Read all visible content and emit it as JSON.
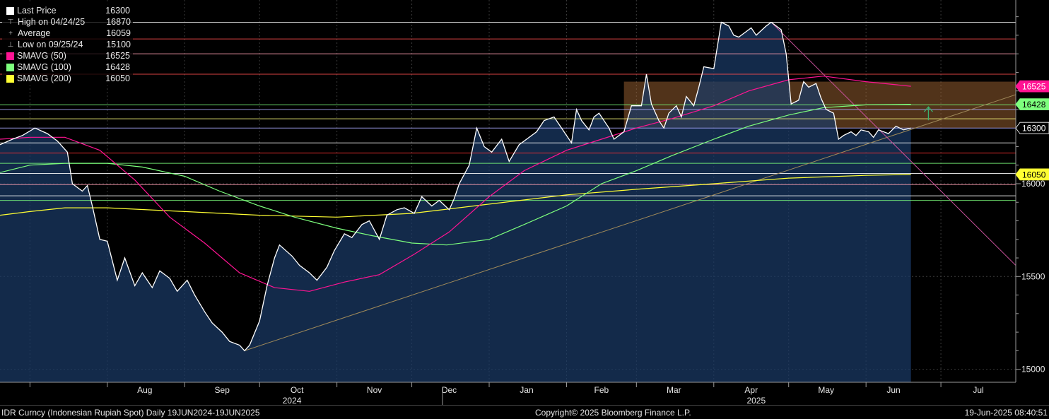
{
  "chart_data": {
    "type": "line",
    "security": "IDR Curncy (Indonesian Rupiah Spot)",
    "frequency": "Daily",
    "range_label": "19JUN2024-19JUN2025",
    "ylim": [
      14930,
      16990
    ],
    "y_ticks": [
      15000,
      15500,
      16000
    ],
    "x_month_labels": [
      "Aug",
      "Sep",
      "Oct",
      "Nov",
      "Dec",
      "Jan",
      "Feb",
      "Mar",
      "Apr",
      "May",
      "Jun",
      "Jul"
    ],
    "x_year_labels": [
      "2024",
      "2025"
    ],
    "legend": [
      {
        "name": "Last Price",
        "value": "16300",
        "color": "#ffffff",
        "marker": "square"
      },
      {
        "name": "High on 04/24/25",
        "value": "16870",
        "color": "#aaaaaa",
        "marker": "high"
      },
      {
        "name": "Average",
        "value": "16059",
        "color": "#aaaaaa",
        "marker": "avg"
      },
      {
        "name": "Low on 09/25/24",
        "value": "15100",
        "color": "#aaaaaa",
        "marker": "low"
      },
      {
        "name": "SMAVG (50)",
        "value": "16525",
        "color": "#ff1493",
        "marker": "square"
      },
      {
        "name": "SMAVG (100)",
        "value": "16428",
        "color": "#7dff7d",
        "marker": "square"
      },
      {
        "name": "SMAVG (200)",
        "value": "16050",
        "color": "#ffff33",
        "marker": "square"
      }
    ],
    "axis_tags": [
      {
        "value": 16525,
        "label": "16525",
        "bg": "#ff1493",
        "fg": "#ffffff"
      },
      {
        "value": 16428,
        "label": "16428",
        "bg": "#7dff7d",
        "fg": "#000000"
      },
      {
        "value": 16300,
        "label": "16300",
        "bg": "#000000",
        "fg": "#ffffff"
      },
      {
        "value": 16050,
        "label": "16050",
        "bg": "#ffff33",
        "fg": "#000000"
      }
    ],
    "last_price": {
      "color": "#ffffff",
      "points": [
        [
          "2024-06-19",
          16210
        ],
        [
          "2024-06-24",
          16240
        ],
        [
          "2024-06-28",
          16260
        ],
        [
          "2024-07-03",
          16300
        ],
        [
          "2024-07-08",
          16270
        ],
        [
          "2024-07-12",
          16230
        ],
        [
          "2024-07-16",
          16170
        ],
        [
          "2024-07-18",
          16000
        ],
        [
          "2024-07-22",
          15960
        ],
        [
          "2024-07-24",
          15990
        ],
        [
          "2024-07-26",
          15880
        ],
        [
          "2024-07-29",
          15700
        ],
        [
          "2024-08-01",
          15690
        ],
        [
          "2024-08-05",
          15480
        ],
        [
          "2024-08-08",
          15600
        ],
        [
          "2024-08-12",
          15450
        ],
        [
          "2024-08-15",
          15520
        ],
        [
          "2024-08-19",
          15440
        ],
        [
          "2024-08-22",
          15530
        ],
        [
          "2024-08-26",
          15490
        ],
        [
          "2024-08-29",
          15420
        ],
        [
          "2024-09-02",
          15480
        ],
        [
          "2024-09-05",
          15400
        ],
        [
          "2024-09-09",
          15310
        ],
        [
          "2024-09-12",
          15250
        ],
        [
          "2024-09-16",
          15200
        ],
        [
          "2024-09-19",
          15150
        ],
        [
          "2024-09-23",
          15130
        ],
        [
          "2024-09-25",
          15100
        ],
        [
          "2024-09-27",
          15130
        ],
        [
          "2024-10-01",
          15260
        ],
        [
          "2024-10-04",
          15450
        ],
        [
          "2024-10-07",
          15600
        ],
        [
          "2024-10-09",
          15670
        ],
        [
          "2024-10-14",
          15610
        ],
        [
          "2024-10-17",
          15560
        ],
        [
          "2024-10-21",
          15520
        ],
        [
          "2024-10-24",
          15480
        ],
        [
          "2024-10-28",
          15550
        ],
        [
          "2024-10-31",
          15640
        ],
        [
          "2024-11-04",
          15730
        ],
        [
          "2024-11-07",
          15710
        ],
        [
          "2024-11-11",
          15780
        ],
        [
          "2024-11-14",
          15800
        ],
        [
          "2024-11-18",
          15700
        ],
        [
          "2024-11-21",
          15830
        ],
        [
          "2024-11-25",
          15860
        ],
        [
          "2024-11-28",
          15870
        ],
        [
          "2024-12-02",
          15840
        ],
        [
          "2024-12-05",
          15930
        ],
        [
          "2024-12-09",
          15880
        ],
        [
          "2024-12-12",
          15910
        ],
        [
          "2024-12-16",
          15860
        ],
        [
          "2024-12-18",
          15920
        ],
        [
          "2024-12-20",
          16000
        ],
        [
          "2024-12-24",
          16100
        ],
        [
          "2024-12-27",
          16300
        ],
        [
          "2024-12-30",
          16200
        ],
        [
          "2025-01-02",
          16170
        ],
        [
          "2025-01-06",
          16240
        ],
        [
          "2025-01-09",
          16120
        ],
        [
          "2025-01-13",
          16210
        ],
        [
          "2025-01-16",
          16240
        ],
        [
          "2025-01-20",
          16280
        ],
        [
          "2025-01-23",
          16340
        ],
        [
          "2025-01-27",
          16360
        ],
        [
          "2025-01-30",
          16300
        ],
        [
          "2025-02-03",
          16220
        ],
        [
          "2025-02-05",
          16400
        ],
        [
          "2025-02-07",
          16340
        ],
        [
          "2025-02-10",
          16290
        ],
        [
          "2025-02-12",
          16360
        ],
        [
          "2025-02-14",
          16380
        ],
        [
          "2025-02-18",
          16300
        ],
        [
          "2025-02-20",
          16240
        ],
        [
          "2025-02-24",
          16280
        ],
        [
          "2025-02-27",
          16420
        ],
        [
          "2025-03-03",
          16420
        ],
        [
          "2025-03-05",
          16590
        ],
        [
          "2025-03-07",
          16430
        ],
        [
          "2025-03-10",
          16340
        ],
        [
          "2025-03-12",
          16300
        ],
        [
          "2025-03-14",
          16380
        ],
        [
          "2025-03-17",
          16420
        ],
        [
          "2025-03-19",
          16360
        ],
        [
          "2025-03-21",
          16470
        ],
        [
          "2025-03-24",
          16420
        ],
        [
          "2025-03-26",
          16520
        ],
        [
          "2025-03-28",
          16630
        ],
        [
          "2025-04-01",
          16620
        ],
        [
          "2025-04-04",
          16870
        ],
        [
          "2025-04-07",
          16850
        ],
        [
          "2025-04-09",
          16800
        ],
        [
          "2025-04-11",
          16790
        ],
        [
          "2025-04-14",
          16820
        ],
        [
          "2025-04-16",
          16840
        ],
        [
          "2025-04-18",
          16800
        ],
        [
          "2025-04-22",
          16850
        ],
        [
          "2025-04-24",
          16870
        ],
        [
          "2025-04-28",
          16830
        ],
        [
          "2025-04-30",
          16700
        ],
        [
          "2025-05-02",
          16430
        ],
        [
          "2025-05-05",
          16450
        ],
        [
          "2025-05-07",
          16550
        ],
        [
          "2025-05-09",
          16520
        ],
        [
          "2025-05-12",
          16540
        ],
        [
          "2025-05-14",
          16460
        ],
        [
          "2025-05-16",
          16400
        ],
        [
          "2025-05-19",
          16380
        ],
        [
          "2025-05-21",
          16240
        ],
        [
          "2025-05-23",
          16260
        ],
        [
          "2025-05-26",
          16280
        ],
        [
          "2025-05-28",
          16260
        ],
        [
          "2025-05-30",
          16290
        ],
        [
          "2025-06-02",
          16280
        ],
        [
          "2025-06-04",
          16250
        ],
        [
          "2025-06-06",
          16290
        ],
        [
          "2025-06-10",
          16270
        ],
        [
          "2025-06-13",
          16310
        ],
        [
          "2025-06-16",
          16290
        ],
        [
          "2025-06-19",
          16300
        ]
      ]
    },
    "sma_50": {
      "color": "#ff1493",
      "points": [
        [
          "2024-06-19",
          16240
        ],
        [
          "2024-07-01",
          16250
        ],
        [
          "2024-07-15",
          16250
        ],
        [
          "2024-07-29",
          16180
        ],
        [
          "2024-08-12",
          16020
        ],
        [
          "2024-08-26",
          15820
        ],
        [
          "2024-09-09",
          15680
        ],
        [
          "2024-09-23",
          15520
        ],
        [
          "2024-10-07",
          15440
        ],
        [
          "2024-10-21",
          15420
        ],
        [
          "2024-11-04",
          15470
        ],
        [
          "2024-11-18",
          15510
        ],
        [
          "2024-12-02",
          15620
        ],
        [
          "2024-12-16",
          15740
        ],
        [
          "2025-01-01",
          15930
        ],
        [
          "2025-01-15",
          16070
        ],
        [
          "2025-02-01",
          16180
        ],
        [
          "2025-02-15",
          16240
        ],
        [
          "2025-03-01",
          16300
        ],
        [
          "2025-03-15",
          16350
        ],
        [
          "2025-04-01",
          16420
        ],
        [
          "2025-04-15",
          16500
        ],
        [
          "2025-05-01",
          16560
        ],
        [
          "2025-05-15",
          16580
        ],
        [
          "2025-06-01",
          16550
        ],
        [
          "2025-06-19",
          16525
        ]
      ]
    },
    "sma_100": {
      "color": "#7dff7d",
      "points": [
        [
          "2024-06-19",
          16060
        ],
        [
          "2024-07-01",
          16100
        ],
        [
          "2024-07-15",
          16110
        ],
        [
          "2024-08-01",
          16110
        ],
        [
          "2024-08-15",
          16090
        ],
        [
          "2024-09-01",
          16040
        ],
        [
          "2024-09-15",
          15960
        ],
        [
          "2024-10-01",
          15880
        ],
        [
          "2024-10-15",
          15820
        ],
        [
          "2024-11-01",
          15760
        ],
        [
          "2024-11-15",
          15720
        ],
        [
          "2024-12-01",
          15680
        ],
        [
          "2024-12-15",
          15670
        ],
        [
          "2025-01-01",
          15700
        ],
        [
          "2025-01-15",
          15780
        ],
        [
          "2025-02-01",
          15880
        ],
        [
          "2025-02-15",
          16000
        ],
        [
          "2025-03-01",
          16070
        ],
        [
          "2025-03-15",
          16150
        ],
        [
          "2025-04-01",
          16240
        ],
        [
          "2025-04-15",
          16310
        ],
        [
          "2025-05-01",
          16370
        ],
        [
          "2025-05-15",
          16410
        ],
        [
          "2025-06-01",
          16425
        ],
        [
          "2025-06-19",
          16428
        ]
      ]
    },
    "sma_200": {
      "color": "#ffff33",
      "points": [
        [
          "2024-06-19",
          15830
        ],
        [
          "2024-07-01",
          15850
        ],
        [
          "2024-07-15",
          15870
        ],
        [
          "2024-08-01",
          15870
        ],
        [
          "2024-09-01",
          15850
        ],
        [
          "2024-10-01",
          15830
        ],
        [
          "2024-11-01",
          15820
        ],
        [
          "2024-12-01",
          15840
        ],
        [
          "2025-01-01",
          15890
        ],
        [
          "2025-02-01",
          15940
        ],
        [
          "2025-03-01",
          15970
        ],
        [
          "2025-04-01",
          16000
        ],
        [
          "2025-05-01",
          16030
        ],
        [
          "2025-06-01",
          16045
        ],
        [
          "2025-06-19",
          16050
        ]
      ]
    },
    "trendlines": [
      {
        "color": "#a08a5a",
        "from": [
          "2024-09-25",
          15100
        ],
        "to": [
          "2025-07-31",
          16480
        ]
      },
      {
        "color": "#c8509a",
        "from": [
          "2025-04-24",
          16870
        ],
        "to": [
          "2025-07-31",
          15560
        ]
      }
    ],
    "horizontal_lines": [
      {
        "value": 16870,
        "color": "#ffffff"
      },
      {
        "value": 16780,
        "color": "#ff4d4d"
      },
      {
        "value": 16700,
        "color": "#ff9db0"
      },
      {
        "value": 16590,
        "color": "#ff4d4d"
      },
      {
        "value": 16425,
        "color": "#7dff7d"
      },
      {
        "value": 16400,
        "color": "#a9a9ff"
      },
      {
        "value": 16350,
        "color": "#ffff80"
      },
      {
        "value": 16300,
        "color": "#a9a9ff"
      },
      {
        "value": 16220,
        "color": "#ffffff"
      },
      {
        "value": 16165,
        "color": "#ff3030"
      },
      {
        "value": 16110,
        "color": "#7dff7d"
      },
      {
        "value": 16055,
        "color": "#ffffff"
      },
      {
        "value": 15995,
        "color": "#ff9db0"
      },
      {
        "value": 15935,
        "color": "#ffffff"
      },
      {
        "value": 15910,
        "color": "#7dff7d"
      }
    ],
    "shaded_zone": {
      "from": "2025-02-24",
      "to": "2025-07-31",
      "top": 16550,
      "bottom": 16300
    },
    "up_arrow": {
      "date": "2025-06-26",
      "value": 16380,
      "color": "#3cb371"
    }
  },
  "footer": {
    "left": "IDR Curncy (Indonesian Rupiah Spot)  Daily 19JUN2024-19JUN2025",
    "center": "Copyright© 2025 Bloomberg Finance L.P.",
    "right": "19-Jun-2025 08:40:51"
  }
}
